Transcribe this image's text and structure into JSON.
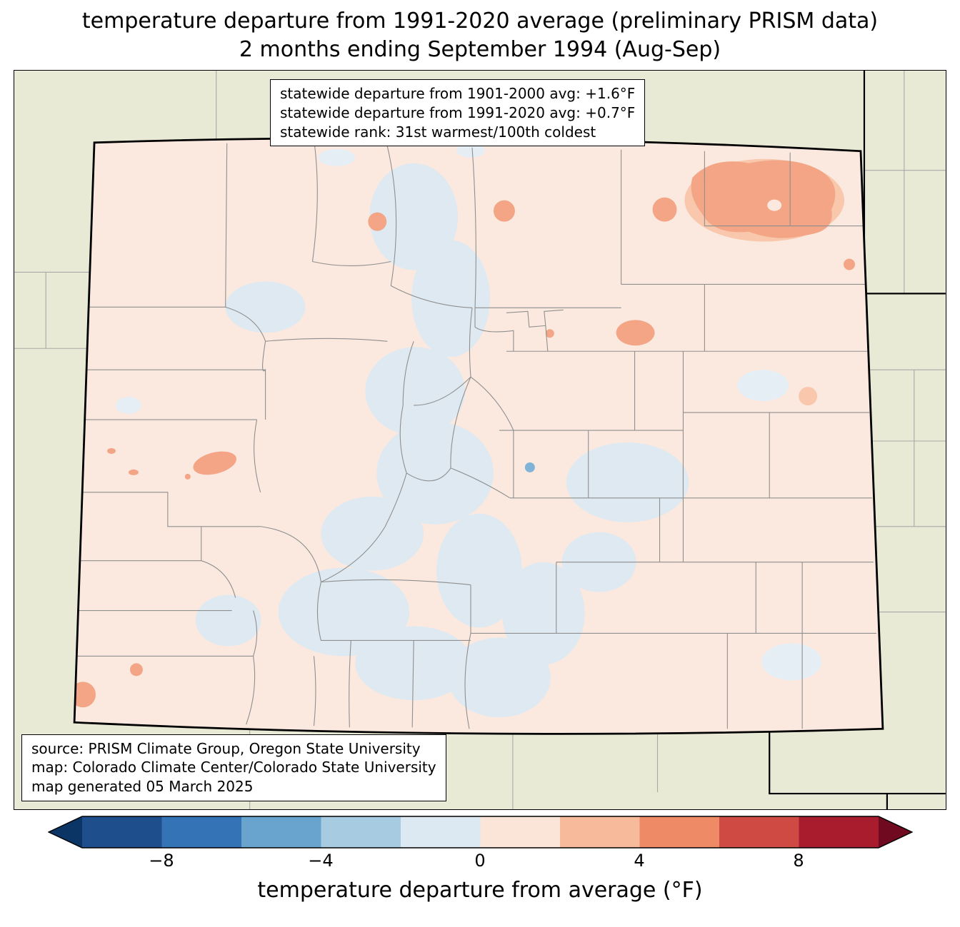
{
  "title": {
    "line1": "temperature departure from 1991-2020 average (preliminary PRISM data)",
    "line2": "2 months ending September 1994 (Aug-Sep)"
  },
  "stats_box": {
    "lines": [
      "statewide departure from 1901-2000 avg: +1.6°F",
      "statewide departure from 1991-2020 avg: +0.7°F",
      "statewide rank: 31st warmest/100th coldest"
    ]
  },
  "source_box": {
    "lines": [
      "source: PRISM Climate Group, Oregon State University",
      "map: Colorado Climate Center/Colorado State University",
      "map generated 05 March 2025"
    ]
  },
  "colorbar": {
    "label": "temperature departure from average (°F)",
    "range": [
      -10,
      10
    ],
    "ticks": [
      {
        "label": "−8",
        "value": -8
      },
      {
        "label": "−4",
        "value": -4
      },
      {
        "label": "0",
        "value": 0
      },
      {
        "label": "4",
        "value": 4
      },
      {
        "label": "8",
        "value": 8
      }
    ],
    "segment_colors": [
      "#1e4f8c",
      "#3474b6",
      "#69a4cf",
      "#a7cce2",
      "#dde9f2",
      "#fbe5d9",
      "#f7bb9b",
      "#ee8a66",
      "#ce4a42",
      "#a81c2e"
    ],
    "arrow_left_color": "#0b3565",
    "arrow_right_color": "#6f0a20"
  },
  "colors": {
    "bg_beige": "#e9ead6",
    "state_fill": "#fbe9df",
    "blue_patch": "#dee9f1",
    "blue_patch_light": "#e6eef5",
    "warm_patch": "#f3a586",
    "warm_patch_light": "#f8c7ac",
    "county_line": "#8f8f8f",
    "outer_line": "#a8a8a8",
    "dot_blue": "#7fb3d7"
  }
}
